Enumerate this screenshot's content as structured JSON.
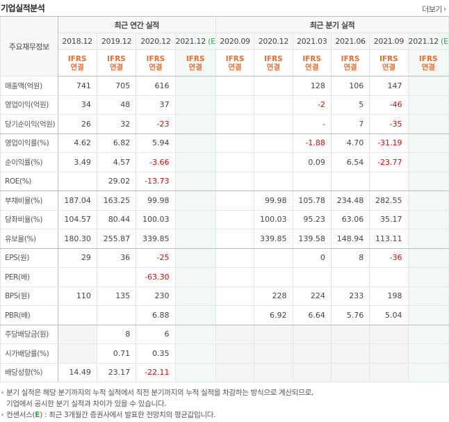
{
  "header": {
    "title": "기업실적분석",
    "more_label": "더보기"
  },
  "table": {
    "corner_label": "주요재무정보",
    "groups": {
      "annual": "최근 연간 실적",
      "quarterly": "최근 분기 실적"
    },
    "annual_periods": [
      {
        "label": "2018.12",
        "estimate": ""
      },
      {
        "label": "2019.12",
        "estimate": ""
      },
      {
        "label": "2020.12",
        "estimate": ""
      },
      {
        "label": "2021.12",
        "estimate": "(E)"
      }
    ],
    "quarterly_periods": [
      {
        "label": "2020.09",
        "estimate": ""
      },
      {
        "label": "2020.12",
        "estimate": ""
      },
      {
        "label": "2021.03",
        "estimate": ""
      },
      {
        "label": "2021.06",
        "estimate": ""
      },
      {
        "label": "2021.09",
        "estimate": ""
      },
      {
        "label": "2021.12",
        "estimate": "(E)"
      }
    ],
    "ifrs_line1": "IFRS",
    "ifrs_line2": "연결",
    "rows": [
      {
        "label": "매출액(억원)",
        "annual": [
          "741",
          "705",
          "616",
          ""
        ],
        "quarterly": [
          "",
          "",
          "128",
          "106",
          "147",
          ""
        ]
      },
      {
        "label": "영업이익(억원)",
        "annual": [
          "34",
          "48",
          "37",
          ""
        ],
        "quarterly": [
          "",
          "",
          "-2",
          "5",
          "-46",
          ""
        ]
      },
      {
        "label": "당기순이익(억원)",
        "annual": [
          "26",
          "32",
          "-23",
          ""
        ],
        "quarterly": [
          "",
          "",
          "-",
          "7",
          "-35",
          ""
        ]
      },
      {
        "label": "영업이익률(%)",
        "annual": [
          "4.62",
          "6.82",
          "5.94",
          ""
        ],
        "quarterly": [
          "",
          "",
          "-1.88",
          "4.70",
          "-31.19",
          ""
        ]
      },
      {
        "label": "순이익률(%)",
        "annual": [
          "3.49",
          "4.57",
          "-3.66",
          ""
        ],
        "quarterly": [
          "",
          "",
          "0.09",
          "6.54",
          "-23.77",
          ""
        ]
      },
      {
        "label": "ROE(%)",
        "annual": [
          "",
          "29.02",
          "-13.73",
          ""
        ],
        "quarterly": [
          "",
          "",
          "",
          "",
          "",
          ""
        ]
      },
      {
        "label": "부채비율(%)",
        "annual": [
          "187.04",
          "163.25",
          "99.98",
          ""
        ],
        "quarterly": [
          "",
          "99.98",
          "105.78",
          "234.48",
          "282.55",
          ""
        ]
      },
      {
        "label": "당좌비율(%)",
        "annual": [
          "104.57",
          "80.44",
          "100.03",
          ""
        ],
        "quarterly": [
          "",
          "100.03",
          "95.23",
          "63.06",
          "35.17",
          ""
        ]
      },
      {
        "label": "유보율(%)",
        "annual": [
          "180.30",
          "255.87",
          "339.85",
          ""
        ],
        "quarterly": [
          "",
          "339.85",
          "139.58",
          "148.94",
          "113.11",
          ""
        ]
      },
      {
        "label": "EPS(원)",
        "annual": [
          "29",
          "36",
          "-25",
          ""
        ],
        "quarterly": [
          "",
          "",
          "0",
          "8",
          "-36",
          ""
        ]
      },
      {
        "label": "PER(배)",
        "annual": [
          "",
          "",
          "-63.30",
          ""
        ],
        "quarterly": [
          "",
          "",
          "",
          "",
          "",
          ""
        ]
      },
      {
        "label": "BPS(원)",
        "annual": [
          "110",
          "135",
          "230",
          ""
        ],
        "quarterly": [
          "",
          "228",
          "224",
          "233",
          "198",
          ""
        ]
      },
      {
        "label": "PBR(배)",
        "annual": [
          "",
          "",
          "6.88",
          ""
        ],
        "quarterly": [
          "",
          "6.92",
          "6.64",
          "5.76",
          "5.04",
          ""
        ]
      },
      {
        "label": "주당배당금(원)",
        "annual": [
          "",
          "8",
          "6",
          ""
        ],
        "quarterly": [
          "",
          "",
          "",
          "",
          "",
          ""
        ]
      },
      {
        "label": "시가배당률(%)",
        "annual": [
          "",
          "0.71",
          "0.35",
          ""
        ],
        "quarterly": [
          "",
          "",
          "",
          "",
          "",
          ""
        ]
      },
      {
        "label": "배당성향(%)",
        "annual": [
          "14.49",
          "23.17",
          "-22.11",
          ""
        ],
        "quarterly": [
          "",
          "",
          "",
          "",
          "",
          ""
        ]
      }
    ]
  },
  "notes": {
    "line1": "분기 실적은 해당 분기까지의 누적 실적에서 직전 분기까지의 누적 실적을 차감하는 방식으로 계산되므로,",
    "line1b": "기업에서 공시한 분기 실적과 차이가 있을 수 있습니다.",
    "line2_prefix": "컨센서스(",
    "line2_mark": "E",
    "line2_suffix": ") : 최근 3개월간 증권사에서 발표한 전망치의 평균값입니다."
  },
  "colors": {
    "negative": "#e60000",
    "ifrs": "#ea6d2f",
    "estimate_mark": "#36a34d",
    "estimate_bg": "#f2f8f3"
  }
}
